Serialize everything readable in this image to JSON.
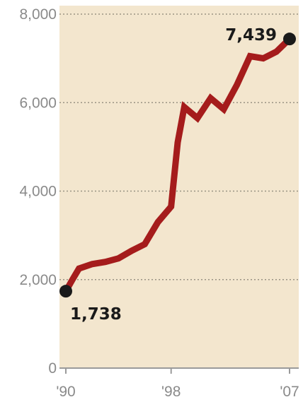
{
  "chart_data": {
    "type": "line",
    "title": "",
    "xlabel": "",
    "ylabel": "",
    "ylim": [
      0,
      8000
    ],
    "xlim": [
      1990,
      2007
    ],
    "yticks": [
      {
        "value": 0,
        "label": "0"
      },
      {
        "value": 2000,
        "label": "2,000"
      },
      {
        "value": 4000,
        "label": "4,000"
      },
      {
        "value": 6000,
        "label": "6,000"
      },
      {
        "value": 8000,
        "label": "8,000"
      }
    ],
    "xticks": [
      {
        "value": 1990,
        "label": "'90"
      },
      {
        "value": 1998,
        "label": "'98"
      },
      {
        "value": 2007,
        "label": "'07"
      }
    ],
    "grid": true,
    "colors": {
      "background": "#f3e6ce",
      "line": "#a51c1c",
      "marker": "#1a1a1a"
    },
    "series": [
      {
        "x": [
          1990,
          1990.5,
          1991,
          1992,
          1993,
          1994,
          1995,
          1996,
          1997,
          1998,
          1998.5,
          1999,
          2000,
          2001,
          2002,
          2003,
          2004,
          2005,
          2006,
          2007
        ],
        "values": [
          1738,
          2000,
          2250,
          2350,
          2400,
          2480,
          2650,
          2800,
          3300,
          3650,
          5100,
          5900,
          5650,
          6100,
          5850,
          6400,
          7050,
          7000,
          7150,
          7439
        ]
      }
    ],
    "annotations": [
      {
        "x": 1990,
        "y": 1738,
        "label": "1,738"
      },
      {
        "x": 2007,
        "y": 7439,
        "label": "7,439"
      }
    ]
  }
}
